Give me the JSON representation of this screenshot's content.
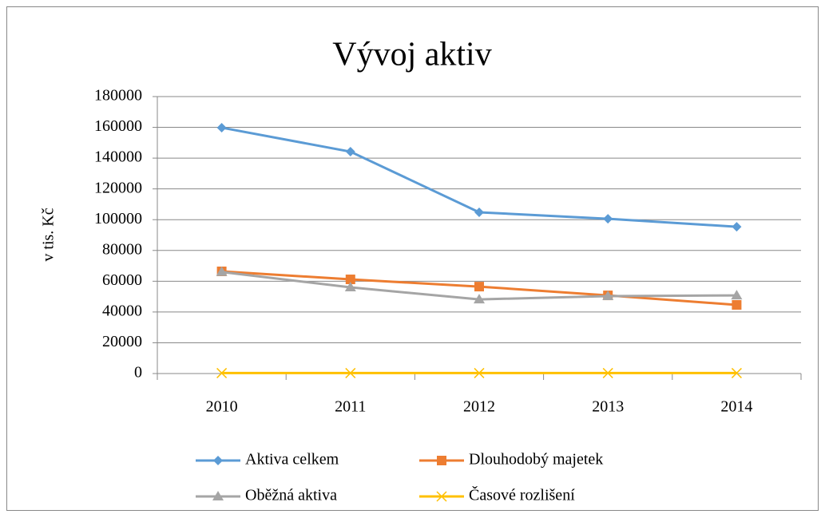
{
  "chart_data": {
    "type": "line",
    "title": "Vývoj aktiv",
    "y_label": "v tis. Kč",
    "categories": [
      "2010",
      "2011",
      "2012",
      "2013",
      "2014"
    ],
    "series": [
      {
        "name": "Aktiva celkem",
        "color": "#5b9bd5",
        "marker": "diamond",
        "values": [
          159800,
          144200,
          104800,
          100600,
          95400
        ]
      },
      {
        "name": "Dlouhodobý majetek",
        "color": "#ed7d31",
        "marker": "square",
        "values": [
          66400,
          61200,
          56500,
          50800,
          44600
        ]
      },
      {
        "name": "Oběžná aktiva",
        "color": "#a5a5a5",
        "marker": "triangle",
        "values": [
          66000,
          56000,
          48200,
          50300,
          50800
        ]
      },
      {
        "name": "Časové rozlišení",
        "color": "#ffc000",
        "marker": "x",
        "values": [
          300,
          300,
          300,
          300,
          300
        ]
      }
    ],
    "ylim": [
      0,
      180000
    ],
    "yticks": [
      0,
      20000,
      40000,
      60000,
      80000,
      100000,
      120000,
      140000,
      160000,
      180000
    ],
    "grid": true,
    "legend": "bottom"
  }
}
